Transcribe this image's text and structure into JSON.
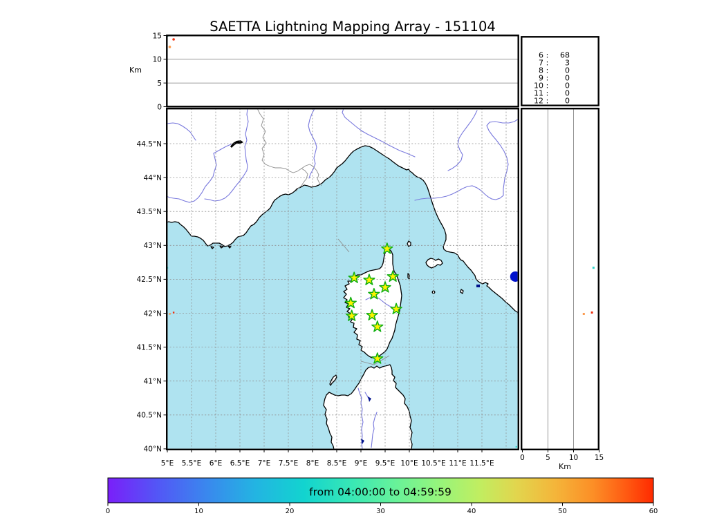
{
  "title": "SAETTA Lightning Mapping Array - 151104",
  "colors": {
    "sea": "#afe3f0",
    "land": "#ffffff",
    "coast": "#000000",
    "river": "#7878dd",
    "lake": "#00128c",
    "star_fill": "#fff200",
    "star_edge": "#13b013",
    "marker_blue": "#0011cc",
    "highlight_red": "#ff0000"
  },
  "alt_panel": {
    "ylabel": "Km",
    "yticks": [
      "15",
      "10",
      "5",
      "0"
    ]
  },
  "counts": {
    "rows": [
      {
        "label": "6",
        "sep": ":",
        "value": "68",
        "color": "#000000"
      },
      {
        "label": "7",
        "sep": ":",
        "value": "3",
        "color": "#ff0000"
      },
      {
        "label": "8",
        "sep": ":",
        "value": "0",
        "color": "#000000"
      },
      {
        "label": "9",
        "sep": ":",
        "value": "0",
        "color": "#000000"
      },
      {
        "label": "10",
        "sep": ":",
        "value": "0",
        "color": "#000000"
      },
      {
        "label": "11",
        "sep": ":",
        "value": "0",
        "color": "#000000"
      },
      {
        "label": "12",
        "sep": ":",
        "value": "0",
        "color": "#000000"
      }
    ]
  },
  "map": {
    "lat_labels": [
      "44.5°N",
      "44°N",
      "43.5°N",
      "43°N",
      "42.5°N",
      "42°N",
      "41.5°N",
      "41°N",
      "40.5°N",
      "40°N"
    ],
    "lon_labels": [
      "5°E",
      "5.5°E",
      "6°E",
      "6.5°E",
      "7°E",
      "7.5°E",
      "8°E",
      "8.5°E",
      "9°E",
      "9.5°E",
      "10°E",
      "10.5°E",
      "11°E",
      "11.5°E"
    ]
  },
  "right_panel": {
    "xticks": [
      "0",
      "5",
      "10",
      "15"
    ],
    "xlabel": "Km"
  },
  "colorbar": {
    "label": "from 04:00:00 to 04:59:59",
    "ticks": [
      "0",
      "10",
      "20",
      "30",
      "40",
      "50",
      "60"
    ]
  },
  "chart_data": {
    "type": "scatter",
    "title": "SAETTA Lightning Mapping Array - 151104",
    "date_code": "151104",
    "time_window": {
      "from": "04:00:00",
      "to": "04:59:59"
    },
    "map_extent": {
      "lon_min": 5.0,
      "lon_max": 12.26,
      "lat_min": 40.0,
      "lat_max": 45.03
    },
    "alt_axis_km": {
      "min": 0,
      "max": 15,
      "gridlines": [
        5,
        10
      ]
    },
    "lon_gridlines": [
      5,
      5.5,
      6,
      6.5,
      7,
      7.5,
      8,
      8.5,
      9,
      9.5,
      10,
      10.5,
      11,
      11.5,
      12
    ],
    "lat_gridlines": [
      40,
      40.5,
      41,
      41.5,
      42,
      42.5,
      43,
      43.5,
      44,
      44.5
    ],
    "stations": [
      {
        "lon": 9.54,
        "lat": 42.95
      },
      {
        "lon": 8.86,
        "lat": 42.52
      },
      {
        "lon": 9.17,
        "lat": 42.49
      },
      {
        "lon": 9.66,
        "lat": 42.54
      },
      {
        "lon": 9.5,
        "lat": 42.38
      },
      {
        "lon": 9.27,
        "lat": 42.28
      },
      {
        "lon": 8.79,
        "lat": 42.15
      },
      {
        "lon": 9.73,
        "lat": 42.06
      },
      {
        "lon": 8.81,
        "lat": 41.96
      },
      {
        "lon": 9.23,
        "lat": 41.97
      },
      {
        "lon": 9.34,
        "lat": 41.8
      },
      {
        "lon": 9.34,
        "lat": 41.33
      }
    ],
    "sources": [
      {
        "color": "#2bd4c8",
        "lon": 5.0,
        "lat": 42.67,
        "alt_top_km": 15.0,
        "alt_right_km": 13.9
      },
      {
        "color": "#f03010",
        "lon": 5.13,
        "lat": 42.01,
        "alt_top_km": 14.2,
        "alt_right_km": 13.6
      },
      {
        "color": "#fb9b50",
        "lon": 5.05,
        "lat": 41.99,
        "alt_top_km": 12.6,
        "alt_right_km": 12.0
      }
    ],
    "extra_points": [
      {
        "color": "#2bd4c8",
        "lon": 12.21,
        "lat": 40.03,
        "size": 2.4
      }
    ],
    "blue_marker": {
      "lon": 12.19,
      "lat": 42.54,
      "radius_px": 7.5
    },
    "counts_by_hour": {
      "6": 68,
      "7": 3,
      "8": 0,
      "9": 0,
      "10": 0,
      "11": 0,
      "12": 0
    },
    "colorbar": {
      "min": 0,
      "max": 60,
      "unit": "minutes past 04:00"
    }
  }
}
